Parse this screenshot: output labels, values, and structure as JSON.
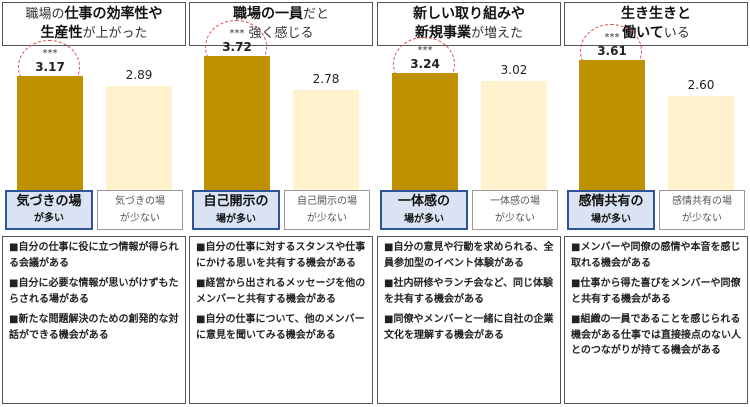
{
  "chart_data": {
    "type": "bar",
    "ylim": [
      0,
      4
    ],
    "categories": [
      "場が多い",
      "場が少ない"
    ],
    "panels": [
      {
        "title": {
          "pre": "職場の",
          "b1": "仕事の効率性や",
          "b2": "生産性",
          "post": "が上がった"
        },
        "high": {
          "value": "3.17",
          "label_bold": "気づきの場",
          "label_rest": "が多い"
        },
        "low": {
          "value": "2.89",
          "label_top": "気づきの場",
          "label_rest": "が少ない"
        },
        "significance": "***",
        "items": [
          "■自分の仕事に役に立つ情報が得られる会議がある",
          "■自分に必要な情報が思いがけずもたらされる場がある",
          "■新たな問題解決のための創発的な対話ができる機会がある"
        ]
      },
      {
        "title": {
          "pre": "",
          "b1": "職場の一員",
          "b2": "",
          "post_line1": "だと",
          "line2": "強く感じる"
        },
        "high": {
          "value": "3.72",
          "label_bold": "自己開示の",
          "label_rest": "場が多い"
        },
        "low": {
          "value": "2.78",
          "label_top": "自己開示の場",
          "label_rest": "が少ない"
        },
        "significance": "***",
        "items": [
          "■自分の仕事に対するスタンスや仕事にかける思いを共有する機会がある",
          "■経営から出されるメッセージを他のメンバーと共有する機会がある",
          "■自分の仕事について、他のメンバーに意見を聞いてみる機会がある"
        ]
      },
      {
        "title": {
          "line1": "新しい取り組みや",
          "line2_bold": "新規事業",
          "line2_post": "が増えた"
        },
        "high": {
          "value": "3.24",
          "label_bold": "一体感の",
          "label_rest": "場が多い"
        },
        "low": {
          "value": "3.02",
          "label_top": "一体感の場",
          "label_rest": "が少ない"
        },
        "significance": "***",
        "items": [
          "■自分の意見や行動を求められる、全員参加型のイベント体験がある",
          "■社内研修やランチ会など、同じ体験を共有する機会がある",
          "■同僚やメンバーと一緒に自社の企業文化を理解する機会がある"
        ]
      },
      {
        "title": {
          "line1": "生き生きと",
          "line2_bold": "働いて",
          "line2_post": "いる"
        },
        "high": {
          "value": "3.61",
          "label_bold": "感情共有の",
          "label_rest": "場が多い"
        },
        "low": {
          "value": "2.60",
          "label_top": "感情共有の場",
          "label_rest": "が少ない"
        },
        "significance": "***",
        "items": [
          "■メンバーや同僚の感情や本音を感じ取れる機会がある",
          "■仕事から得た喜びをメンバーや同僚と共有する機会がある",
          "■組織の一員であることを感じられる機会がある仕事では直接接点のない人とのつながりが持てる機会がある"
        ]
      }
    ]
  },
  "colors": {
    "high_bar": "#bf9000",
    "low_bar": "#fff2cc",
    "high_label_bg": "#dae3f3",
    "ring": "#e05050"
  }
}
